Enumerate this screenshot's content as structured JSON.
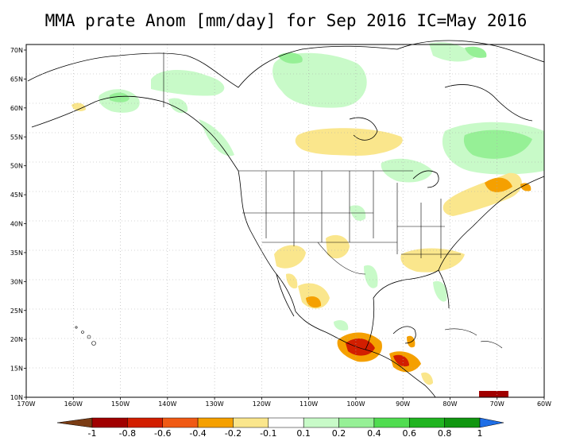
{
  "title": "MMA prate Anom [mm/day] for Sep 2016 IC=May 2016",
  "axes": {
    "lon_ticks": [
      "170W",
      "160W",
      "150W",
      "140W",
      "130W",
      "120W",
      "110W",
      "100W",
      "90W",
      "80W",
      "70W",
      "60W"
    ],
    "lat_ticks": [
      "70N",
      "65N",
      "60N",
      "55N",
      "50N",
      "45N",
      "40N",
      "35N",
      "30N",
      "25N",
      "20N",
      "15N",
      "10N"
    ]
  },
  "colorbar": {
    "labels": [
      "-1",
      "-0.8",
      "-0.6",
      "-0.4",
      "-0.2",
      "-0.1",
      "0.1",
      "0.2",
      "0.4",
      "0.6",
      "0.8",
      "1"
    ],
    "colors": [
      "#7a3c14",
      "#a00000",
      "#d21e00",
      "#f05a14",
      "#f5a000",
      "#fae68c",
      "#ffffff",
      "#c8fac8",
      "#96f096",
      "#50dc50",
      "#20b420",
      "#109610",
      "#1e6ee6"
    ]
  },
  "colors": {
    "land": "#ffffff",
    "coast": "#000000",
    "grid": "#aaaaaa"
  }
}
